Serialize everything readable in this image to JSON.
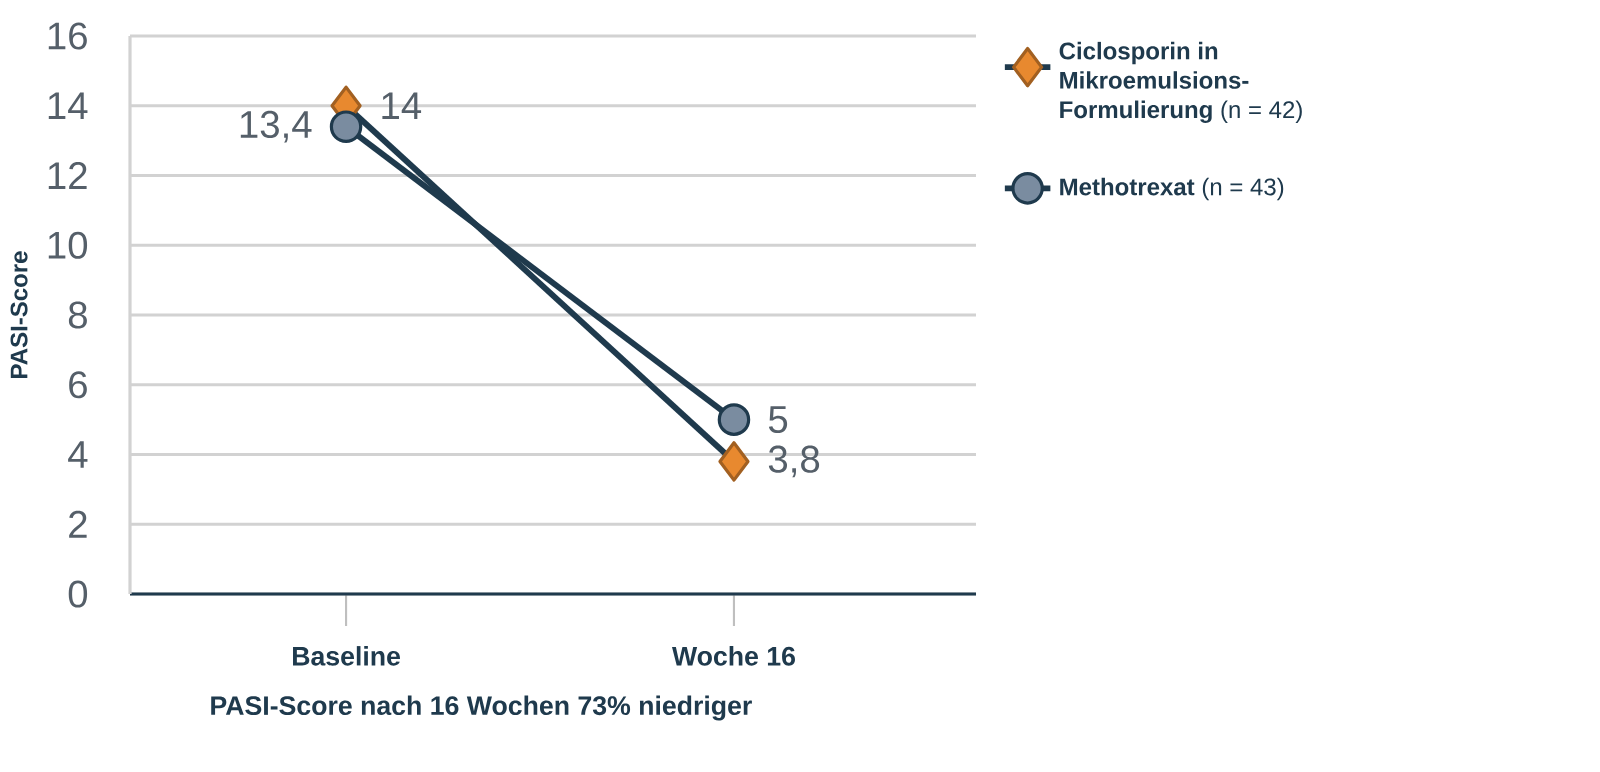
{
  "chart_data": {
    "type": "line",
    "ylabel": "PASI-Score",
    "categories": [
      "Baseline",
      "Woche 16"
    ],
    "series": [
      {
        "name": "**Ciclosporin in Mikroemulsions-Formulierung** (n = 42)",
        "color": "#e8892f",
        "marker": "diamond",
        "values": [
          14,
          3.8
        ],
        "value_labels": [
          "14",
          "3,8"
        ]
      },
      {
        "name": "**Methotrexat** (n = 43)",
        "color": "#7a8ca0",
        "marker": "circle",
        "values": [
          13.4,
          5
        ],
        "value_labels": [
          "13,4",
          "5"
        ]
      }
    ],
    "ylim": [
      0,
      16
    ],
    "yticks": [
      0,
      2,
      4,
      6,
      8,
      10,
      12,
      14,
      16
    ],
    "grid": "y",
    "legend": "right",
    "line_style": "solid",
    "annotations": [
      "**PASI-Score nach 16 Wochen 73% niedriger**"
    ]
  }
}
